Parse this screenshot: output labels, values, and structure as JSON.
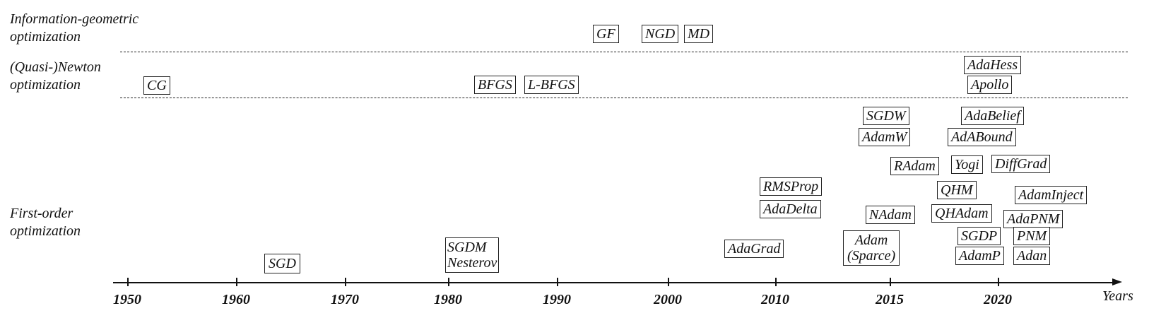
{
  "categories": {
    "info_geometric": [
      "Information-geometric",
      "optimization"
    ],
    "quasi_newton": [
      "(Quasi-)Newton",
      "optimization"
    ],
    "first_order": [
      "First-order",
      "optimization"
    ]
  },
  "methods": {
    "gf": "GF",
    "ngd": "NGD",
    "md": "MD",
    "cg": "CG",
    "bfgs": "BFGS",
    "lbfgs": "L-BFGS",
    "adahess": "AdaHess",
    "apollo": "Apollo",
    "sgdw": "SGDW",
    "adamw": "AdamW",
    "adabelief": "AdaBelief",
    "adabound": "AdABound",
    "radam": "RAdam",
    "yogi": "Yogi",
    "diffgrad": "DiffGrad",
    "rmsprop": "RMSProp",
    "qhm": "QHM",
    "adaminject": "AdamInject",
    "adadelta": "AdaDelta",
    "nadam": "NAdam",
    "qhadam": "QHAdam",
    "adapnm": "AdaPNM",
    "sgdp": "SGDP",
    "pnm": "PNM",
    "adagrad": "AdaGrad",
    "adam": [
      "Adam",
      "(Sparce)"
    ],
    "sgdm": [
      "SGDM",
      "Nesterov"
    ],
    "sgd": "SGD",
    "adamp": "AdamP",
    "adan": "Adan"
  },
  "axis": {
    "title": "Years",
    "years": [
      "1950",
      "1960",
      "1970",
      "1980",
      "1990",
      "2000",
      "2010",
      "2015",
      "2020"
    ]
  }
}
